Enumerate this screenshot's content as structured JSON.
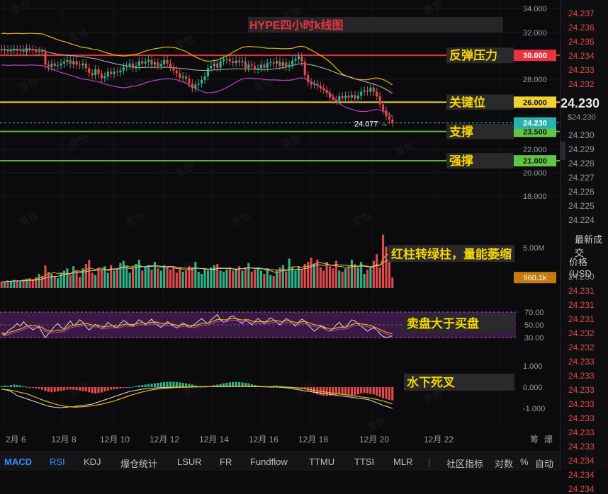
{
  "chart_data": {
    "type": "candlestick",
    "title": "HYPE四小时k线图",
    "x_ticks": [
      "2月 6",
      "12月 8",
      "12月 10",
      "12月 12",
      "12月 14",
      "12月 16",
      "12月 18",
      "12月 20",
      "12月 22"
    ],
    "y_ticks": [
      "34.000",
      "32.000",
      "28.000",
      "22.000",
      "20.000",
      "18.000"
    ],
    "price_range": [
      16.6,
      34.6
    ],
    "current_price": 24.23,
    "low_marker": "24.077",
    "levels": [
      {
        "name": "反弹压力",
        "value": 30.0,
        "label": "30.000",
        "color": "#e8343e",
        "text_color": "#ffffff"
      },
      {
        "name": "关键位",
        "value": 26.0,
        "label": "26.000",
        "color": "#f0d232",
        "text_color": "#111111"
      },
      {
        "name": "支撑",
        "value": 23.5,
        "label": "23.500",
        "color": "#5fc544",
        "text_color": "#111111"
      },
      {
        "name": "强撑",
        "value": 21.0,
        "label": "21.000",
        "color": "#5fc544",
        "text_color": "#111111"
      }
    ],
    "current_label": "24.230",
    "close": [
      30.45,
      30.5,
      30.35,
      30.5,
      30.55,
      30.4,
      30.5,
      30.3,
      30.6,
      30.55,
      30.45,
      30.3,
      30.35,
      30.25,
      29.2,
      29.0,
      29.3,
      29.1,
      29.15,
      29.3,
      29.45,
      29.6,
      29.25,
      29.5,
      29.2,
      29.15,
      29.3,
      28.9,
      28.5,
      28.3,
      28.8,
      28.4,
      28.05,
      28.2,
      28.6,
      28.4,
      28.6,
      28.55,
      28.7,
      29.0,
      29.1,
      29.3,
      28.9,
      29.1,
      29.5,
      29.3,
      29.45,
      29.6,
      29.2,
      29.4,
      29.1,
      29.25,
      29.6,
      29.3,
      29.0,
      28.7,
      28.45,
      28.1,
      28.2,
      28.0,
      27.6,
      27.2,
      27.5,
      27.6,
      27.9,
      28.2,
      28.9,
      29.1,
      29.3,
      28.95,
      29.5,
      29.65,
      29.7,
      29.5,
      29.35,
      29.55,
      29.4,
      29.5,
      28.9,
      29.2,
      29.1,
      28.8,
      28.9,
      29.2,
      28.95,
      29.35,
      29.4,
      29.3,
      29.5,
      29.1,
      29.4,
      29.0,
      29.2,
      29.55,
      29.7,
      29.9,
      29.45,
      28.3,
      27.7,
      27.5,
      27.55,
      27.4,
      27.2,
      27.05,
      26.8,
      26.4,
      26.2,
      26.1,
      26.5,
      26.35,
      26.55,
      26.4,
      26.6,
      26.3,
      26.55,
      26.9,
      27.0,
      26.9,
      27.25,
      26.9,
      26.5,
      25.8,
      25.3,
      24.8,
      24.5,
      24.23
    ],
    "volume_axis": {
      "max_label": "5.00M",
      "current": "960.1k",
      "current_frac": 0.1921
    },
    "volume": [
      0.55,
      0.6,
      0.7,
      0.65,
      0.75,
      0.7,
      0.6,
      0.8,
      0.85,
      0.9,
      0.7,
      1.0,
      1.3,
      1.1,
      2.1,
      1.5,
      1.3,
      1.1,
      0.9,
      1.4,
      1.6,
      1.8,
      1.2,
      2.0,
      1.6,
      1.0,
      1.8,
      2.2,
      2.6,
      1.4,
      1.2,
      1.8,
      1.7,
      2.0,
      1.4,
      2.1,
      1.6,
      1.8,
      2.3,
      2.5,
      2.0,
      1.4,
      1.9,
      2.2,
      2.6,
      1.6,
      2.0,
      2.1,
      1.7,
      2.4,
      1.8,
      1.6,
      2.1,
      2.0,
      1.7,
      1.9,
      1.4,
      1.8,
      1.5,
      1.6,
      2.0,
      1.9,
      2.4,
      1.5,
      1.3,
      1.7,
      1.6,
      1.9,
      2.1,
      2.2,
      1.6,
      1.5,
      1.7,
      1.9,
      1.6,
      1.8,
      2.0,
      1.6,
      1.9,
      2.3,
      1.5,
      1.7,
      1.9,
      1.6,
      1.3,
      1.8,
      1.2,
      1.1,
      1.6,
      1.9,
      2.1,
      1.5,
      2.7,
      1.9,
      1.6,
      2.0,
      1.7,
      2.2,
      2.4,
      2.8,
      2.2,
      2.6,
      1.9,
      1.6,
      2.4,
      2.0,
      1.8,
      2.5,
      1.6,
      1.5,
      1.8,
      2.0,
      2.6,
      2.2,
      1.9,
      2.4,
      1.3,
      1.7,
      2.0,
      2.5,
      3.1,
      1.9,
      4.9,
      3.8,
      2.5,
      0.96
    ],
    "rsi_axis": [
      "70.00",
      "50.00",
      "30.00"
    ],
    "rsi": [
      38,
      34,
      40,
      44,
      47,
      52,
      48,
      55,
      50,
      46,
      42,
      45,
      47,
      38,
      30,
      36,
      42,
      48,
      52,
      46,
      44,
      50,
      56,
      49,
      52,
      58,
      54,
      47,
      42,
      46,
      51,
      47,
      44,
      48,
      54,
      50,
      47,
      45,
      52,
      57,
      54,
      50,
      48,
      53,
      58,
      55,
      50,
      54,
      59,
      53,
      49,
      46,
      50,
      55,
      52,
      48,
      45,
      49,
      53,
      50,
      46,
      48,
      52,
      56,
      60,
      55,
      52,
      58,
      62,
      66,
      58,
      54,
      56,
      62,
      64,
      60,
      55,
      52,
      58,
      54,
      50,
      55,
      60,
      56,
      52,
      57,
      61,
      58,
      54,
      50,
      55,
      60,
      57,
      52,
      48,
      54,
      59,
      56,
      50,
      45,
      40,
      44,
      48,
      46,
      42,
      40,
      44,
      50,
      54,
      48,
      46,
      52,
      58,
      56,
      52,
      48,
      44,
      40,
      43,
      46,
      42,
      36,
      32,
      30,
      31,
      33
    ],
    "macd_axis": [
      "1.000",
      "0.000",
      "-1.000"
    ],
    "macd_hist": [
      0.05,
      0.08,
      0.06,
      0.1,
      0.12,
      0.1,
      0.08,
      0.05,
      0.02,
      -0.02,
      -0.04,
      -0.06,
      -0.08,
      -0.12,
      -0.18,
      -0.22,
      -0.24,
      -0.22,
      -0.2,
      -0.18,
      -0.15,
      -0.12,
      -0.1,
      -0.12,
      -0.14,
      -0.16,
      -0.18,
      -0.2,
      -0.24,
      -0.28,
      -0.3,
      -0.28,
      -0.25,
      -0.2,
      -0.16,
      -0.12,
      -0.1,
      -0.08,
      -0.06,
      -0.04,
      -0.02,
      0.0,
      0.02,
      0.05,
      0.08,
      0.1,
      0.12,
      0.14,
      0.16,
      0.18,
      0.2,
      0.22,
      0.24,
      0.25,
      0.26,
      0.25,
      0.24,
      0.22,
      0.2,
      0.18,
      0.16,
      0.12,
      0.08,
      0.05,
      0.03,
      0.02,
      0.04,
      0.06,
      0.09,
      0.12,
      0.15,
      0.18,
      0.2,
      0.22,
      0.24,
      0.25,
      0.24,
      0.22,
      0.2,
      0.18,
      0.14,
      0.1,
      0.07,
      0.05,
      0.04,
      0.03,
      0.05,
      0.07,
      0.08,
      0.06,
      0.04,
      0.03,
      0.02,
      0.01,
      0.0,
      -0.03,
      -0.06,
      -0.1,
      -0.16,
      -0.22,
      -0.28,
      -0.34,
      -0.38,
      -0.4,
      -0.42,
      -0.4,
      -0.38,
      -0.36,
      -0.34,
      -0.36,
      -0.38,
      -0.4,
      -0.42,
      -0.38,
      -0.34,
      -0.3,
      -0.28,
      -0.3,
      -0.32,
      -0.34,
      -0.4,
      -0.46,
      -0.52,
      -0.56,
      -0.6,
      -0.62
    ],
    "macd_line": [
      -0.1,
      -0.12,
      -0.15,
      -0.2,
      -0.3,
      -0.4,
      -0.45,
      -0.5,
      -0.55,
      -0.6,
      -0.65,
      -0.7,
      -0.75,
      -0.8,
      -0.85,
      -0.9,
      -0.92,
      -0.95,
      -0.96,
      -0.97,
      -0.95,
      -0.94,
      -0.93,
      -0.92,
      -0.9,
      -0.88,
      -0.86,
      -0.84,
      -0.82,
      -0.8,
      -0.75,
      -0.7,
      -0.65,
      -0.6,
      -0.55,
      -0.5,
      -0.45,
      -0.4,
      -0.35,
      -0.3,
      -0.25,
      -0.2,
      -0.18,
      -0.15,
      -0.12,
      -0.1,
      -0.08,
      -0.06,
      -0.05,
      -0.04,
      -0.03,
      -0.02,
      -0.02,
      -0.01,
      -0.01,
      0.0,
      0.0,
      0.0,
      0.01,
      0.01,
      0.01,
      0.02,
      0.02,
      0.02,
      0.03,
      0.03,
      0.03,
      0.03,
      0.04,
      0.04,
      0.04,
      0.05,
      0.05,
      0.05,
      0.05,
      0.05,
      0.04,
      0.04,
      0.04,
      0.03,
      0.03,
      0.02,
      0.02,
      0.02,
      0.01,
      0.01,
      0.0,
      0.0,
      0.0,
      -0.01,
      -0.02,
      -0.03,
      -0.05,
      -0.08,
      -0.1,
      -0.12,
      -0.15,
      -0.18,
      -0.2,
      -0.22,
      -0.24,
      -0.26,
      -0.28,
      -0.3,
      -0.32,
      -0.34,
      -0.36,
      -0.38,
      -0.4,
      -0.42,
      -0.44,
      -0.46,
      -0.48,
      -0.5,
      -0.52,
      -0.54,
      -0.56,
      -0.58,
      -0.62,
      -0.68,
      -0.74,
      -0.8,
      -0.86,
      -0.9,
      -0.95,
      -1.0
    ]
  },
  "annotations": {
    "resistance": "反弹压力",
    "key": "关键位",
    "support": "支撑",
    "strong": "强撑",
    "volume": "红柱转绿柱，量能萎缩",
    "rsi": "卖盘大于买盘",
    "macd": "水下死叉"
  },
  "watermark": "圣怡",
  "toolbar": [
    "MACD",
    "RSI",
    "KDJ",
    "爆仓统计",
    "LSUR",
    "FR",
    "Fundflow",
    "TTMU",
    "TTSI",
    "MLR"
  ],
  "toolbar_right": [
    "社区指标",
    "对数",
    "%",
    "自动"
  ],
  "axis_extra": [
    "筹",
    "爆"
  ],
  "side": {
    "top_prices": [
      "24.237",
      "24.236",
      "24.235",
      "24.234",
      "24.233",
      "24.232"
    ],
    "big_price": "24.230",
    "usd_price": "$24.230",
    "mid_prices": [
      "24.230",
      "24.229",
      "24.228",
      "24.227",
      "24.226",
      "24.225",
      "24.224"
    ],
    "trades_title": "最新成交",
    "price_header": "价格(USD",
    "bottom_prices": [
      "24.230",
      "24.231",
      "24.231",
      "24.231",
      "24.232",
      "24.232",
      "24.233",
      "24.233",
      "24.233",
      "24.233",
      "24.233",
      "24.233",
      "24.233",
      "24.234",
      "24.234",
      "24.234"
    ]
  }
}
